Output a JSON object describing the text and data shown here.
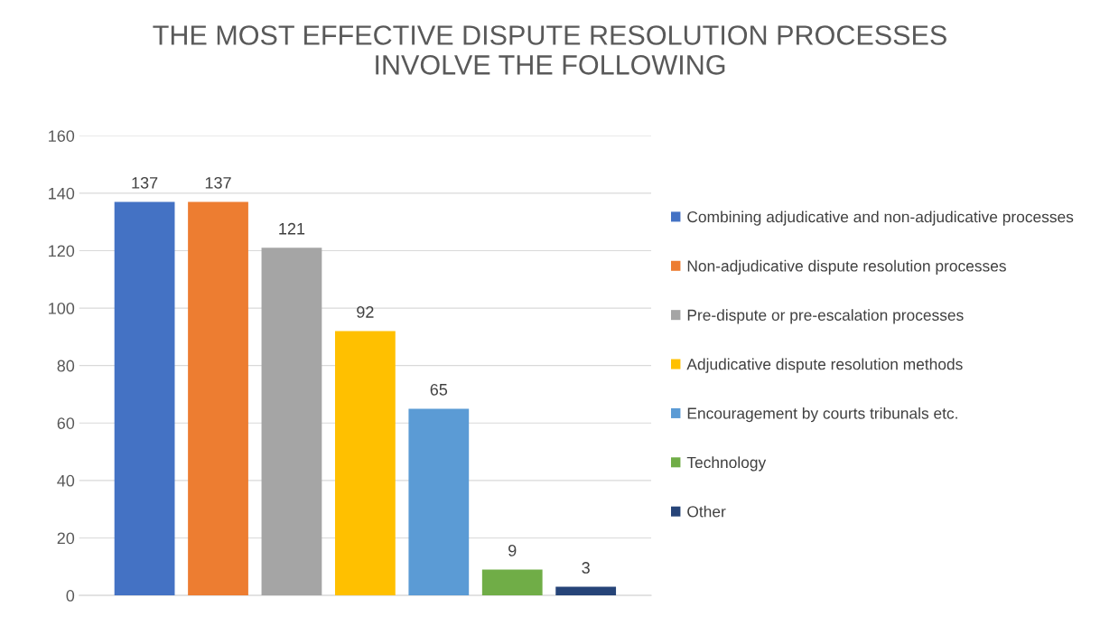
{
  "chart_data": {
    "type": "bar",
    "title": "THE MOST EFFECTIVE DISPUTE RESOLUTION PROCESSES\nINVOLVE THE FOLLOWING",
    "categories": [
      null
    ],
    "series": [
      {
        "name": "Combining adjudicative and non-adjudicative processes",
        "color": "#4472c4",
        "values": [
          137
        ]
      },
      {
        "name": "Non-adjudicative dispute resolution processes",
        "color": "#ed7d31",
        "values": [
          137
        ]
      },
      {
        "name": "Pre-dispute or pre-escalation processes",
        "color": "#a5a5a5",
        "values": [
          121
        ]
      },
      {
        "name": "Adjudicative dispute resolution methods",
        "color": "#ffc000",
        "values": [
          92
        ]
      },
      {
        "name": "Encouragement by courts tribunals etc.",
        "color": "#5b9bd5",
        "values": [
          65
        ]
      },
      {
        "name": "Technology",
        "color": "#70ad47",
        "values": [
          9
        ]
      },
      {
        "name": "Other",
        "color": "#264478",
        "values": [
          3
        ]
      }
    ],
    "ylim": [
      0,
      160
    ],
    "yticks": [
      0,
      20,
      40,
      60,
      80,
      100,
      120,
      140,
      160
    ],
    "grid": "y",
    "legend": "right",
    "tick_labels": "y",
    "data_labels": true
  }
}
